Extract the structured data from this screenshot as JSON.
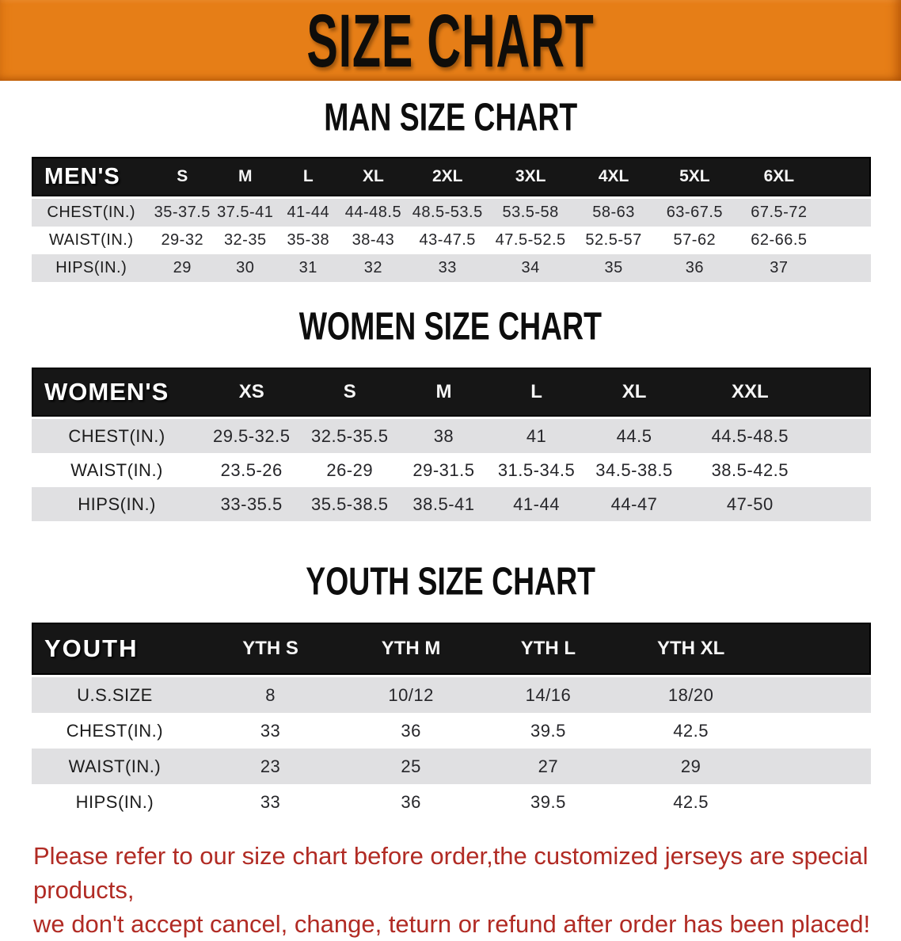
{
  "banner": {
    "title": "SIZE CHART"
  },
  "colors": {
    "banner_orange": "#e67e17",
    "header_black": "#161616",
    "stripe_gray": "#e0e0e2",
    "note_red": "#b12b24"
  },
  "sections": {
    "men": {
      "title": "MAN SIZE CHART"
    },
    "women": {
      "title": "WOMEN SIZE CHART"
    },
    "youth": {
      "title": "YOUTH SIZE CHART"
    }
  },
  "tables": {
    "men": {
      "label": "MEN'S",
      "sizes": [
        "S",
        "M",
        "L",
        "XL",
        "2XL",
        "3XL",
        "4XL",
        "5XL",
        "6XL"
      ],
      "rows": [
        {
          "label": "CHEST(IN.)",
          "values": [
            "35-37.5",
            "37.5-41",
            "41-44",
            "44-48.5",
            "48.5-53.5",
            "53.5-58",
            "58-63",
            "63-67.5",
            "67.5-72"
          ]
        },
        {
          "label": "WAIST(IN.)",
          "values": [
            "29-32",
            "32-35",
            "35-38",
            "38-43",
            "43-47.5",
            "47.5-52.5",
            "52.5-57",
            "57-62",
            "62-66.5"
          ]
        },
        {
          "label": "HIPS(IN.)",
          "values": [
            "29",
            "30",
            "31",
            "32",
            "33",
            "34",
            "35",
            "36",
            "37"
          ]
        }
      ]
    },
    "women": {
      "label": "WOMEN'S",
      "sizes": [
        "XS",
        "S",
        "M",
        "L",
        "XL",
        "XXL"
      ],
      "rows": [
        {
          "label": "CHEST(IN.)",
          "values": [
            "29.5-32.5",
            "32.5-35.5",
            "38",
            "41",
            "44.5",
            "44.5-48.5"
          ]
        },
        {
          "label": "WAIST(IN.)",
          "values": [
            "23.5-26",
            "26-29",
            "29-31.5",
            "31.5-34.5",
            "34.5-38.5",
            "38.5-42.5"
          ]
        },
        {
          "label": "HIPS(IN.)",
          "values": [
            "33-35.5",
            "35.5-38.5",
            "38.5-41",
            "41-44",
            "44-47",
            "47-50"
          ]
        }
      ]
    },
    "youth": {
      "label": "YOUTH",
      "sizes": [
        "YTH S",
        "YTH M",
        "YTH L",
        "YTH XL"
      ],
      "rows": [
        {
          "label": "U.S.SIZE",
          "values": [
            "8",
            "10/12",
            "14/16",
            "18/20"
          ]
        },
        {
          "label": "CHEST(IN.)",
          "values": [
            "33",
            "36",
            "39.5",
            "42.5"
          ]
        },
        {
          "label": "WAIST(IN.)",
          "values": [
            "23",
            "25",
            "27",
            "29"
          ]
        },
        {
          "label": "HIPS(IN.)",
          "values": [
            "33",
            "36",
            "39.5",
            "42.5"
          ]
        }
      ]
    }
  },
  "note": {
    "line1": "Please refer to our size chart before order,the customized jerseys are special products,",
    "line2": "we don't accept cancel, change, teturn or refund after order has been placed!"
  }
}
